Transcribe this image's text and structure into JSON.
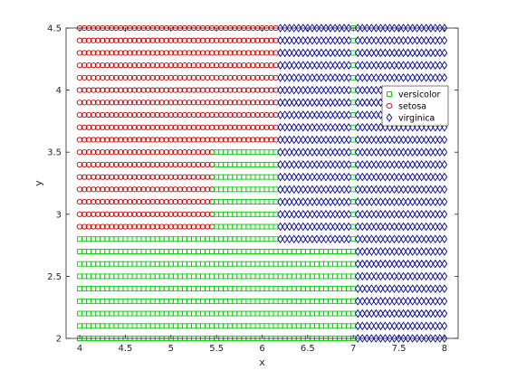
{
  "chart_data": {
    "type": "scatter",
    "title": "",
    "xlabel": "x",
    "ylabel": "y",
    "xlim": [
      3.85,
      8.15
    ],
    "ylim": [
      2.0,
      4.5
    ],
    "xticks": [
      "4",
      "4.5",
      "5",
      "5.5",
      "6",
      "6.5",
      "7",
      "7.5",
      "8"
    ],
    "yticks": [
      "2",
      "2.5",
      "3",
      "3.5",
      "4",
      "4.5"
    ],
    "grid": false,
    "legend_location": "right, upper-middle",
    "grid_sampling": {
      "x_start": 4.0,
      "x_end": 8.0,
      "x_step": 0.05,
      "y_start": 2.0,
      "y_end": 4.5,
      "y_step": 0.1
    },
    "series": [
      {
        "name": "versicolor",
        "marker": "square",
        "color": "#00cc00"
      },
      {
        "name": "setosa",
        "marker": "circle",
        "color": "#cc0000"
      },
      {
        "name": "virginica",
        "marker": "diamond",
        "color": "#0000aa"
      }
    ],
    "decision_regions_description_values": {
      "setosa_region": "upper-left, x from 4.0 to about 6.15 for y above about 3.5 and x up to about 5.45 for y 2.8–3.5",
      "versicolor_region": "lower band x 4.0–7.0 for y below about 2.75, plus middle block x 5.5–6.15 y 2.9–3.5, and thin column at x = 7.0",
      "virginica_region": "right side x above about 6.2 (upper) and above about 7.05 (lower)"
    }
  }
}
